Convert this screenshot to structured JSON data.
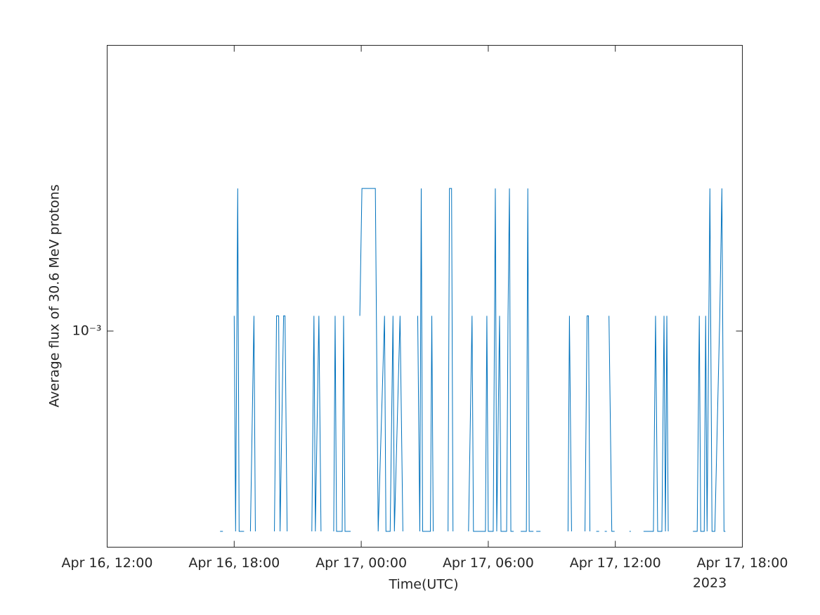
{
  "chart_data": {
    "type": "line",
    "x_label": "Time(UTC)",
    "y_label": "Average flux of 30.6 MeV protons",
    "x_year_label": "2023",
    "y_scale": "log",
    "xlim": [
      "2023-04-16 12:00",
      "2023-04-17 18:00"
    ],
    "xticks": [
      {
        "value": "2023-04-16 12:00",
        "label": "Apr 16, 12:00"
      },
      {
        "value": "2023-04-16 18:00",
        "label": "Apr 16, 18:00"
      },
      {
        "value": "2023-04-17 00:00",
        "label": "Apr 17, 00:00"
      },
      {
        "value": "2023-04-17 06:00",
        "label": "Apr 17, 06:00"
      },
      {
        "value": "2023-04-17 12:00",
        "label": "Apr 17, 12:00"
      },
      {
        "value": "2023-04-17 18:00",
        "label": "Apr 17, 18:00"
      }
    ],
    "ylim": [
      0.0005,
      0.0025
    ],
    "yticks": [
      {
        "value": 0.001,
        "label": "10⁻³"
      }
    ],
    "x": [
      "2023-04-16 17:20",
      "2023-04-16 17:28",
      "2023-04-16 17:40",
      "2023-04-16 18:00",
      "2023-04-16 18:04",
      "2023-04-16 18:10",
      "2023-04-16 18:14",
      "2023-04-16 18:28",
      "2023-04-16 18:36",
      "2023-04-16 18:46",
      "2023-04-16 18:56",
      "2023-04-16 19:00",
      "2023-04-16 19:20",
      "2023-04-16 19:54",
      "2023-04-16 20:00",
      "2023-04-16 20:06",
      "2023-04-16 20:10",
      "2023-04-16 20:20",
      "2023-04-16 20:24",
      "2023-04-16 20:30",
      "2023-04-16 21:00",
      "2023-04-16 21:40",
      "2023-04-16 21:46",
      "2023-04-16 21:50",
      "2023-04-16 22:00",
      "2023-04-16 22:06",
      "2023-04-16 22:20",
      "2023-04-16 22:42",
      "2023-04-16 22:46",
      "2023-04-16 22:50",
      "2023-04-16 23:06",
      "2023-04-16 23:10",
      "2023-04-16 23:14",
      "2023-04-16 23:30",
      "2023-04-16 23:40",
      "2023-04-16 23:56",
      "2023-04-17 00:02",
      "2023-04-17 00:40",
      "2023-04-17 00:48",
      "2023-04-17 01:06",
      "2023-04-17 01:10",
      "2023-04-17 01:22",
      "2023-04-17 01:30",
      "2023-04-17 01:34",
      "2023-04-17 01:50",
      "2023-04-17 01:58",
      "2023-04-17 02:20",
      "2023-04-17 02:40",
      "2023-04-17 02:46",
      "2023-04-17 02:50",
      "2023-04-17 02:54",
      "2023-04-17 03:16",
      "2023-04-17 03:20",
      "2023-04-17 03:24",
      "2023-04-17 03:40",
      "2023-04-17 04:06",
      "2023-04-17 04:10",
      "2023-04-17 04:16",
      "2023-04-17 04:20",
      "2023-04-17 04:40",
      "2023-04-17 05:04",
      "2023-04-17 05:14",
      "2023-04-17 05:18",
      "2023-04-17 05:52",
      "2023-04-17 05:56",
      "2023-04-17 06:00",
      "2023-04-17 06:14",
      "2023-04-17 06:20",
      "2023-04-17 06:24",
      "2023-04-17 06:32",
      "2023-04-17 06:36",
      "2023-04-17 06:52",
      "2023-04-17 06:56",
      "2023-04-17 07:00",
      "2023-04-17 07:04",
      "2023-04-17 07:12",
      "2023-04-17 07:20",
      "2023-04-17 07:32",
      "2023-04-17 07:48",
      "2023-04-17 07:52",
      "2023-04-17 07:56",
      "2023-04-17 08:08",
      "2023-04-17 08:12",
      "2023-04-17 08:16",
      "2023-04-17 08:28",
      "2023-04-17 08:50",
      "2023-04-17 09:46",
      "2023-04-17 09:50",
      "2023-04-17 09:56",
      "2023-04-17 10:10",
      "2023-04-17 10:34",
      "2023-04-17 10:40",
      "2023-04-17 10:44",
      "2023-04-17 10:48",
      "2023-04-17 10:56",
      "2023-04-17 11:06",
      "2023-04-17 11:14",
      "2023-04-17 11:20",
      "2023-04-17 11:30",
      "2023-04-17 11:36",
      "2023-04-17 11:38",
      "2023-04-17 11:42",
      "2023-04-17 11:50",
      "2023-04-17 11:58",
      "2023-04-17 12:20",
      "2023-04-17 12:40",
      "2023-04-17 12:44",
      "2023-04-17 13:00",
      "2023-04-17 13:20",
      "2023-04-17 13:48",
      "2023-04-17 13:54",
      "2023-04-17 14:00",
      "2023-04-17 14:12",
      "2023-04-17 14:18",
      "2023-04-17 14:22",
      "2023-04-17 14:26",
      "2023-04-17 14:30",
      "2023-04-17 15:00",
      "2023-04-17 15:40",
      "2023-04-17 15:52",
      "2023-04-17 15:58",
      "2023-04-17 16:02",
      "2023-04-17 16:12",
      "2023-04-17 16:16",
      "2023-04-17 16:20",
      "2023-04-17 16:28",
      "2023-04-17 16:34",
      "2023-04-17 16:42",
      "2023-04-17 16:56",
      "2023-04-17 17:02",
      "2023-04-17 17:08",
      "2023-04-17 17:12"
    ],
    "series": [
      {
        "color": "#0072bd",
        "values": [
          0.000526,
          0.000526,
          null,
          0.00105,
          0.000526,
          0.00158,
          0.000526,
          0.000526,
          null,
          0.000526,
          0.00105,
          0.000526,
          null,
          0.000526,
          0.00105,
          0.00105,
          0.000526,
          0.00105,
          0.00105,
          0.000526,
          null,
          0.000526,
          0.00105,
          0.000526,
          0.00105,
          0.000526,
          null,
          0.000526,
          0.00105,
          0.000526,
          0.000526,
          0.00105,
          0.000526,
          0.000526,
          null,
          0.00105,
          0.00158,
          0.00158,
          0.000526,
          0.00105,
          0.000526,
          0.000526,
          0.00105,
          0.000526,
          0.00105,
          0.000526,
          null,
          0.00105,
          0.000526,
          0.00158,
          0.000526,
          0.000526,
          0.00105,
          0.000526,
          null,
          0.000526,
          0.00158,
          0.00158,
          0.000526,
          null,
          0.000526,
          0.00105,
          0.000526,
          0.000526,
          0.00105,
          0.000526,
          0.000526,
          0.00158,
          0.000526,
          0.00105,
          0.000526,
          0.000526,
          0.00105,
          0.00158,
          0.000526,
          0.000526,
          null,
          0.000526,
          0.000526,
          0.00158,
          0.000526,
          0.000526,
          null,
          0.000526,
          0.000526,
          null,
          0.000526,
          0.00105,
          0.000526,
          null,
          0.000526,
          0.00105,
          0.00105,
          0.000526,
          null,
          0.000526,
          0.000526,
          null,
          0.000526,
          0.000526,
          null,
          0.00105,
          0.000526,
          0.000526,
          null,
          0.000526,
          0.000526,
          null,
          0.000526,
          0.000526,
          0.00105,
          0.000526,
          0.000526,
          0.00105,
          0.000526,
          0.00105,
          0.000526,
          null,
          0.000526,
          0.000526,
          0.00105,
          0.000526,
          0.000526,
          0.00105,
          0.000526,
          0.00158,
          0.000526,
          0.000526,
          0.00105,
          0.00158,
          0.000526,
          0.000526
        ]
      }
    ]
  }
}
